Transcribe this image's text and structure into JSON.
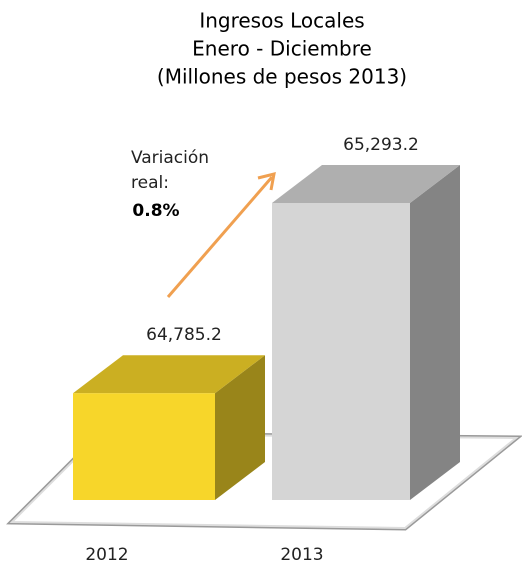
{
  "chart_data": {
    "type": "bar3d",
    "title": [
      "Ingresos Locales",
      "Enero - Diciembre",
      "(Millones de pesos 2013)"
    ],
    "categories": [
      "2012",
      "2013"
    ],
    "values": [
      64785.2,
      65293.2
    ],
    "value_labels": [
      "64,785.2",
      "65,293.2"
    ],
    "colors": [
      "#f7d62a",
      "#d5d5d5"
    ],
    "ylim": [
      64500,
      65400
    ],
    "annotation": {
      "lines": [
        "Variación",
        "real:"
      ],
      "emphasis": "0.8%"
    }
  }
}
